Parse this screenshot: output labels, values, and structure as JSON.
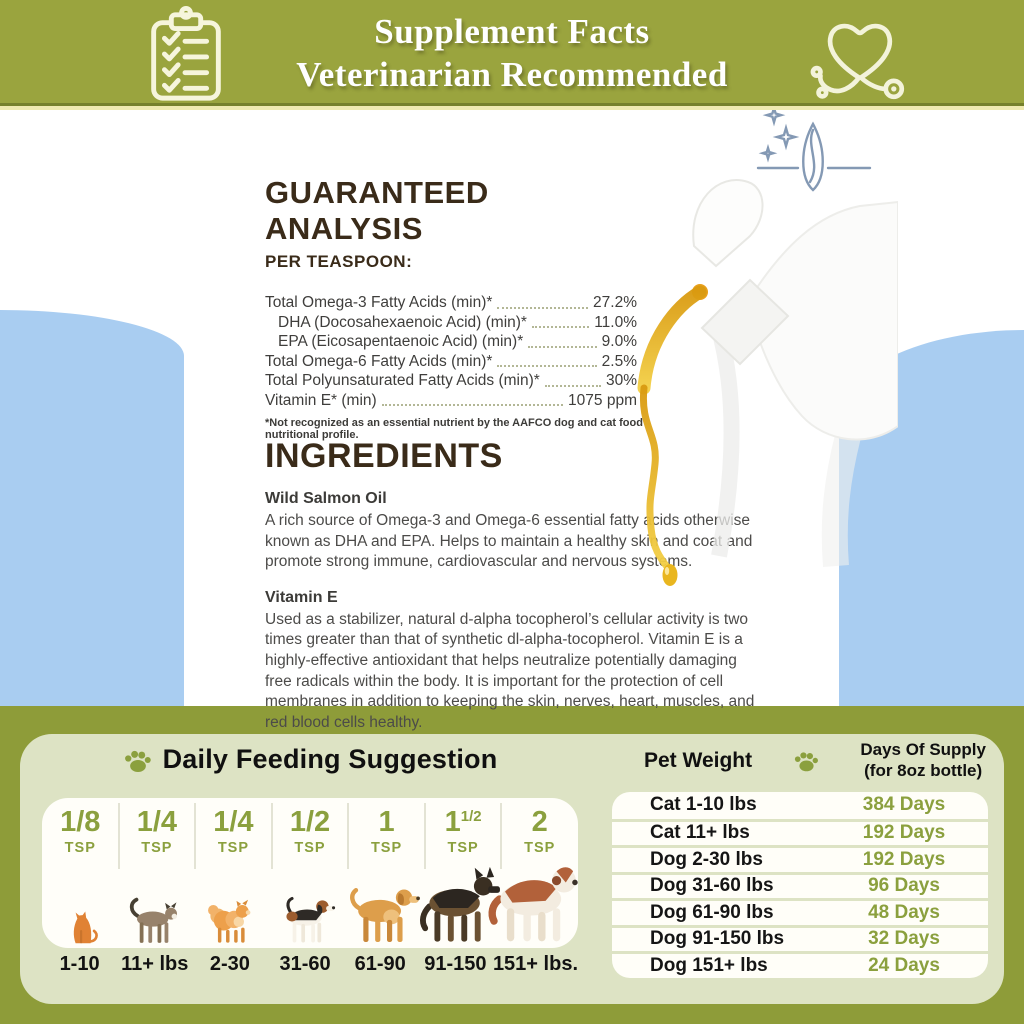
{
  "colors": {
    "banner_olive": "#9aa43e",
    "footer_olive": "#8e9c39",
    "cream_line": "#efeab0",
    "sky_blue": "#a9cdf1",
    "sage_panel": "#dde3c4",
    "accent_green": "#8ba03e",
    "heading_brown": "#3a2b19",
    "body_text": "#4c4b49",
    "oil_gold": "#e3a715"
  },
  "banner": {
    "line1": "Supplement Facts",
    "line2": "Veterinarian Recommended",
    "left_icon": "clipboard-checklist-icon",
    "right_icon": "heart-stethoscope-icon"
  },
  "analysis": {
    "heading": "GUARANTEED ANALYSIS",
    "subheading": "PER TEASPOON:",
    "rows": [
      {
        "label": "Total Omega-3 Fatty Acids (min)*",
        "value": "27.2%",
        "indent": false
      },
      {
        "label": "DHA (Docosahexaenoic Acid) (min)*",
        "value": "11.0%",
        "indent": true
      },
      {
        "label": "EPA (Eicosapentaenoic Acid) (min)*",
        "value": "9.0%",
        "indent": true
      },
      {
        "label": "Total Omega-6 Fatty Acids (min)*",
        "value": "2.5%",
        "indent": false
      },
      {
        "label": "Total Polyunsaturated Fatty Acids (min)*",
        "value": "30%",
        "indent": false
      },
      {
        "label": "Vitamin E* (min)",
        "value": "1075 ppm",
        "indent": false
      }
    ],
    "footnote": "*Not recognized as an essential nutrient by the AAFCO dog and cat food nutritional profile."
  },
  "ingredients": {
    "heading": "INGREDIENTS",
    "items": [
      {
        "name": "Wild Salmon Oil",
        "text": "A rich source of Omega-3 and Omega-6 essential fatty acids otherwise known as DHA and EPA. Helps to maintain a healthy skin and coat and promote strong immune, cardiovascular and nervous systems."
      },
      {
        "name": "Vitamin E",
        "text": "Used as a stabilizer, natural d-alpha tocopherol’s cellular activity is two times greater than that of synthetic dl-alpha-tocopherol. Vitamin E is a highly-effective antioxidant that helps neutralize potentially damaging free radicals within the body. It is important for the protection of cell membranes in addition to keeping the skin, nerves, heart, muscles, and red blood cells healthy."
      }
    ]
  },
  "feeding": {
    "title": "Daily Feeding Suggestion",
    "paw_icon": "paw-icon",
    "columns": [
      {
        "amount": "1/8",
        "sup": "",
        "unit": "TSP",
        "weight": "1-10",
        "animal": "cat-sitting"
      },
      {
        "amount": "1/4",
        "sup": "",
        "unit": "TSP",
        "weight": "11+ lbs",
        "animal": "cat-walking"
      },
      {
        "amount": "1/4",
        "sup": "",
        "unit": "TSP",
        "weight": "2-30",
        "animal": "dog-small"
      },
      {
        "amount": "1/2",
        "sup": "",
        "unit": "TSP",
        "weight": "31-60",
        "animal": "dog-beagle"
      },
      {
        "amount": "1",
        "sup": "",
        "unit": "TSP",
        "weight": "61-90",
        "animal": "dog-golden"
      },
      {
        "amount": "1",
        "sup": "1/2",
        "unit": "TSP",
        "weight": "91-150",
        "animal": "dog-shepherd"
      },
      {
        "amount": "2",
        "sup": "",
        "unit": "TSP",
        "weight": "151+ lbs.",
        "animal": "dog-stbernard"
      }
    ]
  },
  "supply": {
    "pet_weight_label": "Pet Weight",
    "paw_icon": "paw-icon",
    "days_label_line1": "Days Of Supply",
    "days_label_line2": "(for 8oz bottle)",
    "rows": [
      {
        "weight": "Cat 1-10 lbs",
        "days": "384 Days"
      },
      {
        "weight": "Cat 11+ lbs",
        "days": "192 Days"
      },
      {
        "weight": "Dog 2-30 lbs",
        "days": "192 Days"
      },
      {
        "weight": "Dog 31-60 lbs",
        "days": "96 Days"
      },
      {
        "weight": "Dog 61-90 lbs",
        "days": "48 Days"
      },
      {
        "weight": "Dog 91-150 lbs",
        "days": "32 Days"
      },
      {
        "weight": "Dog 151+ lbs",
        "days": "24 Days"
      }
    ]
  }
}
